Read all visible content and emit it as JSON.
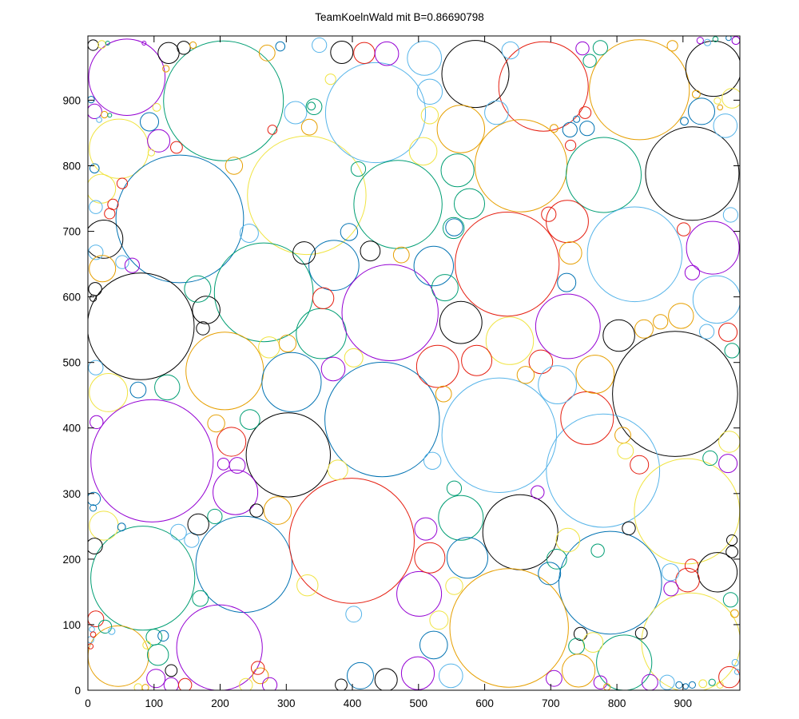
{
  "title": "TeamKoelnWald mit B=0.86690798",
  "chart_data": {
    "type": "scatter",
    "subtype": "circle-packing",
    "title": "TeamKoelnWald mit B=0.86690798",
    "xlabel": "",
    "ylabel": "",
    "xlim": [
      0,
      986
    ],
    "ylim": [
      0,
      998
    ],
    "xticks": [
      0,
      100,
      200,
      300,
      400,
      500,
      600,
      700,
      800,
      900
    ],
    "yticks": [
      0,
      100,
      200,
      300,
      400,
      500,
      600,
      700,
      800,
      900
    ],
    "grid": false,
    "legend": "none",
    "palette": [
      "#9400d3",
      "#009e73",
      "#56b4e9",
      "#e69f00",
      "#f0e442",
      "#0072b2",
      "#e51e10",
      "#000000"
    ],
    "palette_names": [
      "violet",
      "teal-green",
      "sky-blue",
      "orange",
      "yellow",
      "blue",
      "red",
      "black"
    ],
    "circles": [
      [
        59,
        935,
        58,
        0
      ],
      [
        205,
        899,
        91,
        1
      ],
      [
        47,
        826,
        45,
        4
      ],
      [
        139,
        719,
        97,
        5
      ],
      [
        331,
        755,
        90,
        4
      ],
      [
        435,
        881,
        76,
        2
      ],
      [
        586,
        940,
        51,
        7
      ],
      [
        689,
        921,
        68,
        6
      ],
      [
        834,
        916,
        76,
        3
      ],
      [
        946,
        948,
        42,
        7
      ],
      [
        655,
        800,
        70,
        3
      ],
      [
        780,
        786,
        57,
        1
      ],
      [
        914,
        788,
        71,
        7
      ],
      [
        827,
        665,
        72,
        2
      ],
      [
        945,
        675,
        40,
        0
      ],
      [
        80,
        555,
        81,
        7
      ],
      [
        303,
        359,
        64,
        7
      ],
      [
        266,
        607,
        75,
        1
      ],
      [
        372,
        648,
        38,
        5
      ],
      [
        353,
        544,
        38,
        1
      ],
      [
        207,
        487,
        59,
        3
      ],
      [
        457,
        576,
        73,
        0
      ],
      [
        634,
        650,
        79,
        6
      ],
      [
        726,
        555,
        49,
        0
      ],
      [
        638,
        533,
        36,
        4
      ],
      [
        888,
        452,
        95,
        7
      ],
      [
        308,
        470,
        45,
        5
      ],
      [
        445,
        413,
        87,
        5
      ],
      [
        97,
        350,
        93,
        0
      ],
      [
        31,
        454,
        29,
        4
      ],
      [
        622,
        389,
        87,
        2
      ],
      [
        779,
        335,
        86,
        2
      ],
      [
        803,
        541,
        24,
        7
      ],
      [
        83,
        171,
        79,
        1
      ],
      [
        236,
        192,
        73,
        5
      ],
      [
        399,
        228,
        95,
        6
      ],
      [
        199,
        65,
        65,
        0
      ],
      [
        46,
        52,
        46,
        3
      ],
      [
        223,
        302,
        34,
        0
      ],
      [
        654,
        241,
        57,
        7
      ],
      [
        790,
        164,
        78,
        5
      ],
      [
        637,
        95,
        90,
        3
      ],
      [
        906,
        273,
        80,
        4
      ],
      [
        912,
        73,
        75,
        4
      ],
      [
        811,
        42,
        42,
        1
      ],
      [
        952,
        180,
        30,
        7
      ],
      [
        755,
        415,
        40,
        6
      ],
      [
        564,
        561,
        32,
        7
      ],
      [
        529,
        494,
        32,
        6
      ],
      [
        588,
        503,
        23,
        6
      ],
      [
        523,
        647,
        30,
        5
      ],
      [
        540,
        614,
        20,
        1
      ],
      [
        553,
        705,
        16,
        1
      ],
      [
        577,
        742,
        23,
        1
      ],
      [
        559,
        793,
        25,
        1
      ],
      [
        564,
        856,
        36,
        3
      ],
      [
        507,
        822,
        21,
        4
      ],
      [
        517,
        877,
        13,
        4
      ],
      [
        517,
        913,
        19,
        2
      ],
      [
        618,
        881,
        18,
        2
      ],
      [
        928,
        883,
        20,
        5
      ],
      [
        964,
        861,
        18,
        2
      ],
      [
        974,
        903,
        15,
        4
      ],
      [
        469,
        741,
        67,
        1
      ],
      [
        725,
        715,
        32,
        6
      ],
      [
        179,
        580,
        21,
        7
      ],
      [
        174,
        552,
        10,
        7
      ],
      [
        166,
        612,
        20,
        1
      ],
      [
        327,
        667,
        17,
        7
      ],
      [
        244,
        697,
        14,
        2
      ],
      [
        356,
        598,
        16,
        6
      ],
      [
        371,
        490,
        18,
        0
      ],
      [
        402,
        507,
        14,
        4
      ],
      [
        274,
        523,
        16,
        4
      ],
      [
        302,
        529,
        13,
        3
      ],
      [
        120,
        462,
        19,
        1
      ],
      [
        76,
        458,
        12,
        5
      ],
      [
        12,
        492,
        11,
        2
      ],
      [
        13,
        409,
        10,
        0
      ],
      [
        194,
        407,
        13,
        3
      ],
      [
        217,
        379,
        22,
        6
      ],
      [
        245,
        413,
        15,
        1
      ],
      [
        378,
        336,
        15,
        4
      ],
      [
        205,
        345,
        9,
        0
      ],
      [
        226,
        343,
        12,
        0
      ],
      [
        521,
        350,
        13,
        2
      ],
      [
        538,
        452,
        12,
        3
      ],
      [
        501,
        147,
        34,
        0
      ],
      [
        517,
        202,
        23,
        6
      ],
      [
        564,
        263,
        34,
        1
      ],
      [
        574,
        202,
        31,
        5
      ],
      [
        554,
        308,
        11,
        1
      ],
      [
        554,
        159,
        13,
        4
      ],
      [
        531,
        107,
        14,
        4
      ],
      [
        523,
        69,
        21,
        5
      ],
      [
        499,
        26,
        25,
        0
      ],
      [
        549,
        22,
        18,
        2
      ],
      [
        402,
        116,
        12,
        2
      ],
      [
        412,
        22,
        20,
        5
      ],
      [
        451,
        16,
        17,
        7
      ],
      [
        383,
        8,
        9,
        7
      ],
      [
        511,
        246,
        17,
        0
      ],
      [
        771,
        213,
        10,
        1
      ],
      [
        698,
        178,
        17,
        5
      ],
      [
        709,
        200,
        15,
        1
      ],
      [
        726,
        229,
        18,
        4
      ],
      [
        680,
        302,
        10,
        0
      ],
      [
        818,
        247,
        10,
        7
      ],
      [
        745,
        86,
        10,
        7
      ],
      [
        764,
        73,
        15,
        4
      ],
      [
        739,
        67,
        12,
        1
      ],
      [
        742,
        30,
        25,
        3
      ],
      [
        705,
        18,
        12,
        0
      ],
      [
        775,
        12,
        10,
        0
      ],
      [
        785,
        5,
        5,
        3
      ],
      [
        850,
        12,
        12,
        0
      ],
      [
        876,
        12,
        11,
        2
      ],
      [
        894,
        8,
        5,
        5
      ],
      [
        904,
        6,
        4,
        5
      ],
      [
        914,
        8,
        5,
        5
      ],
      [
        930,
        10,
        6,
        4
      ],
      [
        944,
        12,
        5,
        1
      ],
      [
        956,
        8,
        5,
        4
      ],
      [
        970,
        20,
        16,
        6
      ],
      [
        972,
        138,
        11,
        1
      ],
      [
        978,
        117,
        6,
        3
      ],
      [
        970,
        379,
        16,
        4
      ],
      [
        941,
        354,
        11,
        1
      ],
      [
        968,
        346,
        14,
        0
      ],
      [
        974,
        229,
        8,
        7
      ],
      [
        974,
        211,
        9,
        7
      ],
      [
        907,
        168,
        18,
        6
      ],
      [
        913,
        190,
        10,
        6
      ],
      [
        881,
        180,
        13,
        2
      ],
      [
        882,
        155,
        11,
        0
      ],
      [
        841,
        551,
        14,
        3
      ],
      [
        866,
        562,
        11,
        3
      ],
      [
        897,
        571,
        19,
        3
      ],
      [
        936,
        547,
        11,
        2
      ],
      [
        968,
        546,
        14,
        6
      ],
      [
        974,
        518,
        11,
        1
      ],
      [
        685,
        501,
        18,
        6
      ],
      [
        662,
        481,
        13,
        3
      ],
      [
        767,
        482,
        29,
        3
      ],
      [
        710,
        466,
        29,
        2
      ],
      [
        752,
        881,
        9,
        6
      ],
      [
        730,
        831,
        8,
        6
      ],
      [
        729,
        855,
        11,
        5
      ],
      [
        755,
        857,
        11,
        5
      ],
      [
        739,
        871,
        5,
        5
      ],
      [
        705,
        857,
        6,
        3
      ],
      [
        775,
        980,
        11,
        1
      ],
      [
        759,
        960,
        10,
        1
      ],
      [
        748,
        979,
        10,
        0
      ],
      [
        884,
        983,
        8,
        3
      ],
      [
        952,
        899,
        5,
        4
      ],
      [
        956,
        889,
        4,
        3
      ],
      [
        920,
        909,
        6,
        3
      ],
      [
        926,
        991,
        5,
        0
      ],
      [
        937,
        988,
        5,
        2
      ],
      [
        949,
        993,
        4,
        1
      ],
      [
        980,
        991,
        6,
        0
      ],
      [
        969,
        995,
        4,
        5
      ],
      [
        697,
        726,
        11,
        6
      ],
      [
        730,
        667,
        17,
        3
      ],
      [
        724,
        622,
        14,
        5
      ],
      [
        951,
        596,
        36,
        2
      ],
      [
        914,
        637,
        11,
        0
      ],
      [
        901,
        703,
        10,
        6
      ],
      [
        972,
        725,
        11,
        2
      ],
      [
        122,
        972,
        16,
        7
      ],
      [
        145,
        980,
        10,
        7
      ],
      [
        8,
        984,
        8,
        7
      ],
      [
        21,
        985,
        6,
        4
      ],
      [
        30,
        987,
        3,
        1
      ],
      [
        85,
        987,
        3,
        0
      ],
      [
        159,
        984,
        5,
        3
      ],
      [
        118,
        948,
        5,
        3
      ],
      [
        271,
        972,
        12,
        3
      ],
      [
        291,
        982,
        7,
        5
      ],
      [
        314,
        881,
        17,
        2
      ],
      [
        335,
        859,
        12,
        3
      ],
      [
        338,
        891,
        6,
        1
      ],
      [
        279,
        855,
        7,
        6
      ],
      [
        107,
        838,
        17,
        0
      ],
      [
        93,
        867,
        14,
        5
      ],
      [
        134,
        828,
        9,
        6
      ],
      [
        96,
        820,
        5,
        4
      ],
      [
        104,
        889,
        6,
        4
      ],
      [
        221,
        800,
        13,
        3
      ],
      [
        10,
        883,
        11,
        0
      ],
      [
        25,
        878,
        5,
        3
      ],
      [
        33,
        877,
        3,
        1
      ],
      [
        17,
        870,
        4,
        2
      ],
      [
        5,
        901,
        5,
        5
      ],
      [
        10,
        796,
        7,
        5
      ],
      [
        20,
        765,
        22,
        4
      ],
      [
        52,
        773,
        8,
        6
      ],
      [
        38,
        741,
        8,
        6
      ],
      [
        33,
        727,
        8,
        6
      ],
      [
        12,
        737,
        10,
        2
      ],
      [
        24,
        688,
        29,
        7
      ],
      [
        12,
        668,
        11,
        2
      ],
      [
        11,
        612,
        10,
        7
      ],
      [
        8,
        598,
        5,
        7
      ],
      [
        22,
        643,
        20,
        3
      ],
      [
        52,
        653,
        10,
        2
      ],
      [
        67,
        648,
        11,
        0
      ],
      [
        384,
        973,
        17,
        7
      ],
      [
        418,
        972,
        16,
        6
      ],
      [
        452,
        971,
        18,
        0
      ],
      [
        509,
        964,
        26,
        2
      ],
      [
        639,
        976,
        13,
        2
      ],
      [
        395,
        699,
        13,
        5
      ],
      [
        554,
        706,
        13,
        5
      ],
      [
        427,
        670,
        15,
        7
      ],
      [
        474,
        664,
        12,
        3
      ],
      [
        409,
        795,
        11,
        1
      ],
      [
        342,
        890,
        12,
        1
      ],
      [
        137,
        241,
        12,
        2
      ],
      [
        157,
        229,
        11,
        2
      ],
      [
        24,
        251,
        22,
        4
      ],
      [
        10,
        220,
        12,
        7
      ],
      [
        9,
        292,
        10,
        5
      ],
      [
        8,
        278,
        5,
        5
      ],
      [
        51,
        249,
        6,
        5
      ],
      [
        167,
        253,
        16,
        7
      ],
      [
        192,
        265,
        11,
        1
      ],
      [
        255,
        274,
        10,
        7
      ],
      [
        287,
        274,
        21,
        3
      ],
      [
        12,
        109,
        12,
        6
      ],
      [
        26,
        97,
        10,
        1
      ],
      [
        36,
        90,
        5,
        2
      ],
      [
        6,
        93,
        4,
        2
      ],
      [
        4,
        77,
        5,
        2
      ],
      [
        8,
        85,
        4,
        6
      ],
      [
        4,
        67,
        4,
        6
      ],
      [
        100,
        81,
        12,
        1
      ],
      [
        114,
        83,
        8,
        5
      ],
      [
        106,
        54,
        16,
        1
      ],
      [
        89,
        69,
        6,
        4
      ],
      [
        126,
        30,
        9,
        7
      ],
      [
        103,
        18,
        14,
        0
      ],
      [
        126,
        8,
        11,
        0
      ],
      [
        147,
        8,
        10,
        6
      ],
      [
        76,
        4,
        6,
        4
      ],
      [
        87,
        4,
        5,
        3
      ],
      [
        261,
        22,
        12,
        3
      ],
      [
        257,
        34,
        10,
        6
      ],
      [
        239,
        8,
        10,
        4
      ],
      [
        275,
        8,
        11,
        0
      ],
      [
        170,
        140,
        12,
        1
      ],
      [
        332,
        160,
        16,
        4
      ],
      [
        837,
        87,
        9,
        7
      ],
      [
        979,
        42,
        5,
        2
      ],
      [
        982,
        28,
        4,
        2
      ],
      [
        834,
        344,
        14,
        6
      ],
      [
        809,
        389,
        12,
        3
      ],
      [
        813,
        365,
        12,
        4
      ],
      [
        350,
        984,
        11,
        2
      ],
      [
        367,
        932,
        8,
        4
      ],
      [
        902,
        868,
        6,
        5
      ]
    ]
  }
}
